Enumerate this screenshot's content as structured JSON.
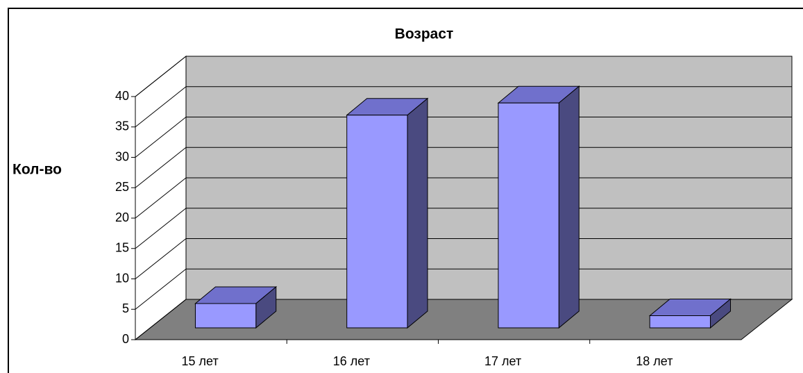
{
  "chart_data": {
    "type": "bar",
    "title": "Возраст",
    "y_label": "Кол-во",
    "categories": [
      "15 лет",
      "16 лет",
      "17 лет",
      "18 лет"
    ],
    "values": [
      4,
      35,
      37,
      2
    ],
    "color": "#9999ff",
    "ylim": [
      0,
      40
    ],
    "yticks": [
      0,
      5,
      10,
      15,
      20,
      25,
      30,
      35,
      40
    ],
    "grid": true
  }
}
